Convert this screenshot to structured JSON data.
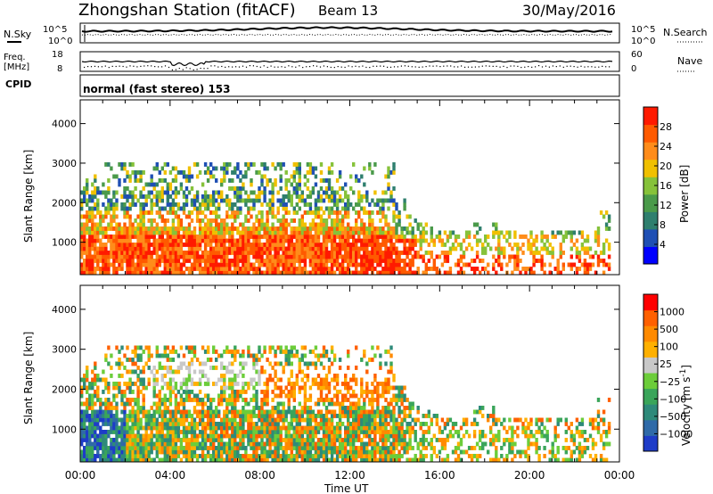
{
  "header": {
    "station": "Zhongshan Station (fitACF)",
    "beam": "Beam 13",
    "date": "30/May/2016"
  },
  "nsky_panel": {
    "left_label": "N.Sky",
    "right_label": "N.Search",
    "left_ticks": [
      "10^5",
      "10^0"
    ],
    "right_ticks": [
      "10^5",
      "10^0"
    ]
  },
  "freq_panel": {
    "left_label_top": "Freq.",
    "left_label_unit": "[MHz]",
    "left_ticks": [
      "18",
      "8"
    ],
    "right_label": "Nave",
    "right_ticks": [
      "60",
      "0"
    ],
    "cpid_label": "CPID",
    "mode_text": "normal (fast stereo) 153"
  },
  "chart_data": [
    {
      "type": "heatmap",
      "name": "power",
      "ylabel": "Slant Range [km]",
      "xlabel": "Time UT",
      "x_ticks": [
        "00:00",
        "04:00",
        "08:00",
        "12:00",
        "16:00",
        "20:00",
        "00:00"
      ],
      "y_ticks": [
        "1000",
        "2000",
        "3000",
        "4000"
      ],
      "ylim": [
        180,
        4600
      ],
      "colorbar": {
        "label": "Power [dB]",
        "ticks": [
          "4",
          "8",
          "12",
          "16",
          "20",
          "24",
          "28"
        ],
        "colors": [
          "#0000ff",
          "#1f4fb4",
          "#2f7f6e",
          "#4a9a4a",
          "#86c23a",
          "#f0c000",
          "#ff8c1a",
          "#ff5a00",
          "#ff1a00"
        ]
      }
    },
    {
      "type": "heatmap",
      "name": "velocity",
      "ylabel": "Slant Range [km]",
      "xlabel": "Time UT",
      "x_ticks": [
        "00:00",
        "04:00",
        "08:00",
        "12:00",
        "16:00",
        "20:00",
        "00:00"
      ],
      "y_ticks": [
        "1000",
        "2000",
        "3000",
        "4000"
      ],
      "ylim": [
        180,
        4600
      ],
      "colorbar": {
        "label_main": "Velocity [m s",
        "label_sup": "-1",
        "label_close": "]",
        "ticks": [
          "1000",
          "500",
          "100",
          "25",
          "−25",
          "−100",
          "−500",
          "−1000"
        ],
        "colors": [
          "#1e3cc8",
          "#2f6aa8",
          "#2e8a7a",
          "#3aa55a",
          "#6ccd3a",
          "#c8c8c8",
          "#ffb000",
          "#ff8a00",
          "#ff6000",
          "#ff0000"
        ]
      }
    }
  ]
}
